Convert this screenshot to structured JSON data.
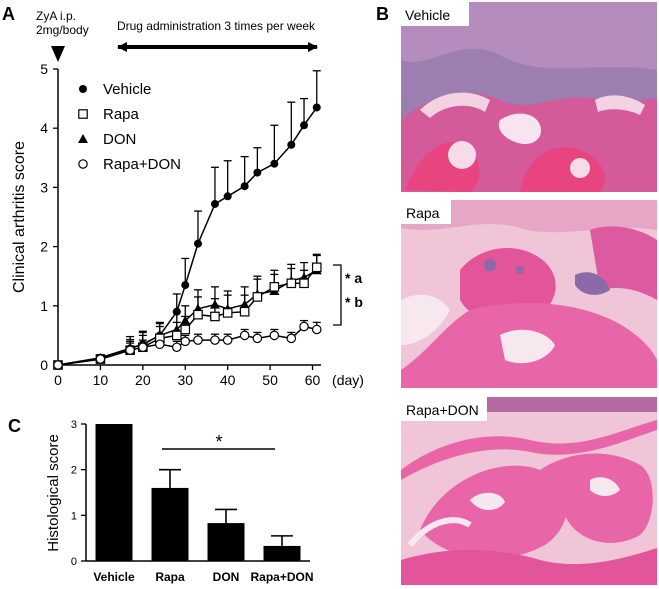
{
  "panels": {
    "a_letter": "A",
    "b_letter": "B",
    "c_letter": "C"
  },
  "annotations": {
    "zya_line1": "ZyA i.p.",
    "zya_line2": "2mg/body",
    "drug_admin": "Drug administration 3 times per week",
    "sig_a": "* a",
    "sig_b": "* b",
    "sig_c": "*"
  },
  "images": [
    {
      "label": "Vehicle",
      "tissue_color": "#e04a8c"
    },
    {
      "label": "Rapa",
      "tissue_color": "#e3559a"
    },
    {
      "label": "Rapa+DON",
      "tissue_color": "#e866a8"
    }
  ],
  "colors": {
    "vehicle_bg": "#9c7fb0",
    "stain_pink": "#e35596",
    "stain_purple": "#7f5b9c",
    "bone_light": "#f1c5d8"
  },
  "chart_data": [
    {
      "type": "line",
      "xlabel": "(day)",
      "ylabel": "Clinical arthritis score",
      "xlim": [
        0,
        62
      ],
      "ylim": [
        0,
        5
      ],
      "xticks": [
        0,
        10,
        20,
        30,
        40,
        50,
        60
      ],
      "yticks": [
        0,
        1,
        2,
        3,
        4,
        5
      ],
      "legend_position": "top-left",
      "series": [
        {
          "name": "Vehicle",
          "marker": "filled-circle",
          "x": [
            0,
            10,
            17,
            20,
            24,
            28,
            30,
            33,
            37,
            40,
            44,
            47,
            51,
            55,
            58,
            61
          ],
          "y": [
            0,
            0.12,
            0.28,
            0.35,
            0.5,
            0.9,
            1.35,
            2.05,
            2.72,
            2.85,
            3.02,
            3.25,
            3.4,
            3.72,
            4.05,
            4.35
          ],
          "err": [
            0,
            0.05,
            0.15,
            0.2,
            0.2,
            0.3,
            0.45,
            0.55,
            0.62,
            0.6,
            0.5,
            0.42,
            0.65,
            0.72,
            0.45,
            0.62
          ]
        },
        {
          "name": "Rapa",
          "marker": "open-square",
          "x": [
            0,
            10,
            17,
            20,
            24,
            28,
            30,
            33,
            37,
            40,
            44,
            47,
            51,
            55,
            58,
            61
          ],
          "y": [
            0,
            0.1,
            0.25,
            0.3,
            0.45,
            0.5,
            0.6,
            0.85,
            0.82,
            0.88,
            0.9,
            1.15,
            1.32,
            1.38,
            1.38,
            1.65
          ],
          "err": [
            0,
            0.04,
            0.15,
            0.2,
            0.2,
            0.22,
            0.22,
            0.3,
            0.3,
            0.3,
            0.28,
            0.3,
            0.28,
            0.25,
            0.22,
            0.22
          ]
        },
        {
          "name": "DON",
          "marker": "filled-triangle",
          "x": [
            0,
            10,
            17,
            20,
            24,
            28,
            30,
            33,
            37,
            40,
            44,
            47,
            51,
            55,
            58,
            61
          ],
          "y": [
            0,
            0.12,
            0.28,
            0.35,
            0.5,
            0.6,
            0.75,
            0.95,
            1.02,
            0.95,
            1.02,
            1.2,
            1.25,
            1.42,
            1.48,
            1.6
          ],
          "err": [
            0,
            0.05,
            0.2,
            0.22,
            0.22,
            0.3,
            0.25,
            0.32,
            0.3,
            0.3,
            0.3,
            0.3,
            0.28,
            0.28,
            0.25,
            0.25
          ]
        },
        {
          "name": "Rapa+DON",
          "marker": "open-circle",
          "x": [
            0,
            10,
            17,
            20,
            24,
            28,
            30,
            33,
            37,
            40,
            44,
            47,
            51,
            55,
            58,
            61
          ],
          "y": [
            0,
            0.1,
            0.25,
            0.3,
            0.35,
            0.3,
            0.4,
            0.42,
            0.42,
            0.42,
            0.5,
            0.45,
            0.5,
            0.45,
            0.65,
            0.6
          ],
          "err": [
            0,
            0.04,
            0.12,
            0.12,
            0.12,
            0.1,
            0.1,
            0.1,
            0.1,
            0.1,
            0.1,
            0.1,
            0.1,
            0.1,
            0.1,
            0.12
          ]
        }
      ]
    },
    {
      "type": "bar",
      "ylabel": "Histological score",
      "ylim": [
        0,
        3
      ],
      "yticks": [
        0,
        1,
        2,
        3
      ],
      "categories": [
        "Vehicle",
        "Rapa",
        "DON",
        "Rapa+DON"
      ],
      "values": [
        3.0,
        1.6,
        0.83,
        0.33
      ],
      "errors": [
        0,
        0.4,
        0.3,
        0.22
      ]
    }
  ]
}
